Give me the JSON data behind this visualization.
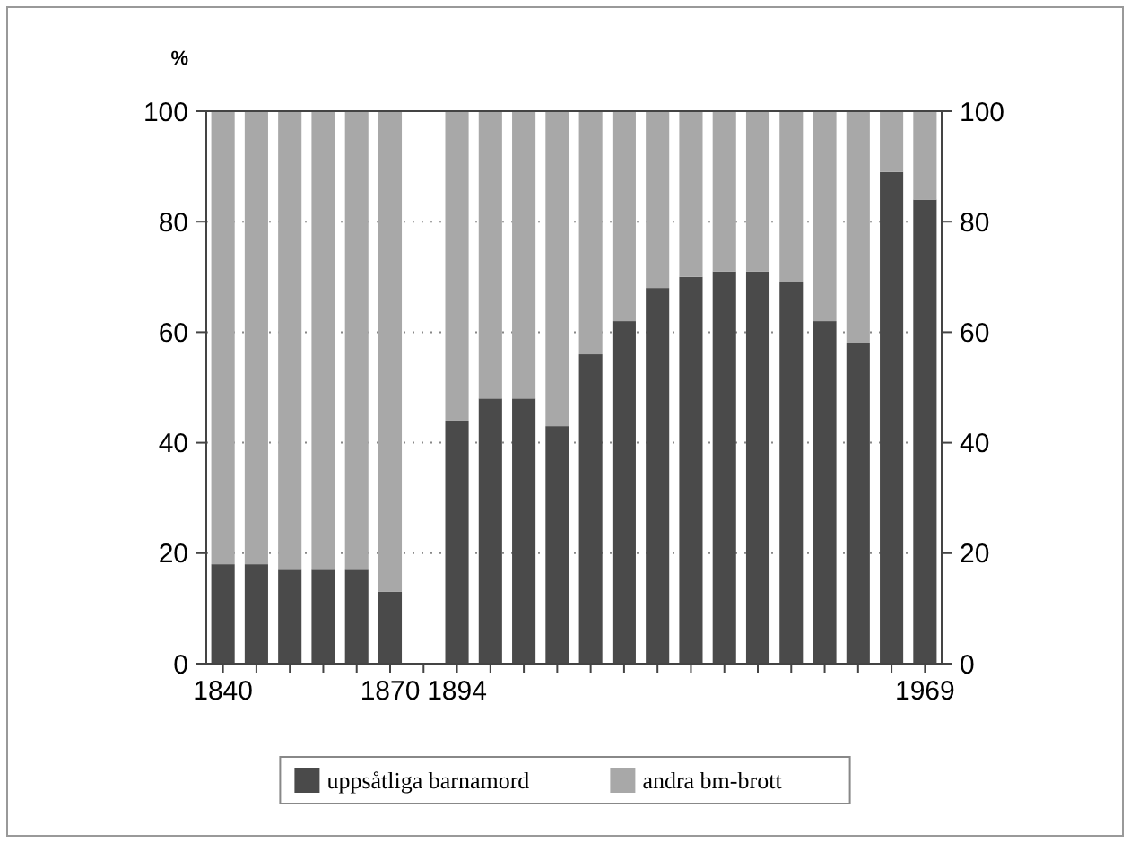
{
  "chart_data": {
    "type": "bar",
    "stacked": true,
    "ylabel": "%",
    "categories": [
      "1840",
      null,
      null,
      null,
      null,
      "1870",
      null,
      "1894",
      null,
      null,
      null,
      null,
      null,
      null,
      null,
      null,
      null,
      null,
      null,
      null,
      null,
      "1969"
    ],
    "series": [
      {
        "name": "uppsåtliga barnamord",
        "color": "#4a4a4a",
        "values": [
          18,
          18,
          17,
          17,
          17,
          13,
          null,
          44,
          48,
          48,
          43,
          56,
          62,
          68,
          70,
          71,
          71,
          69,
          62,
          58,
          89,
          84
        ]
      },
      {
        "name": "andra bm-brott",
        "color": "#a8a8a8",
        "values": [
          82,
          82,
          83,
          83,
          83,
          87,
          null,
          56,
          52,
          52,
          57,
          44,
          38,
          32,
          30,
          29,
          29,
          31,
          38,
          42,
          11,
          16
        ]
      }
    ],
    "ylim": [
      0,
      100
    ],
    "yticks": [
      0,
      20,
      40,
      60,
      80,
      100
    ],
    "y2lim": [
      0,
      100
    ],
    "y2ticks": [
      0,
      20,
      40,
      60,
      80,
      100
    ],
    "grid": "y",
    "legend": "bottom"
  }
}
